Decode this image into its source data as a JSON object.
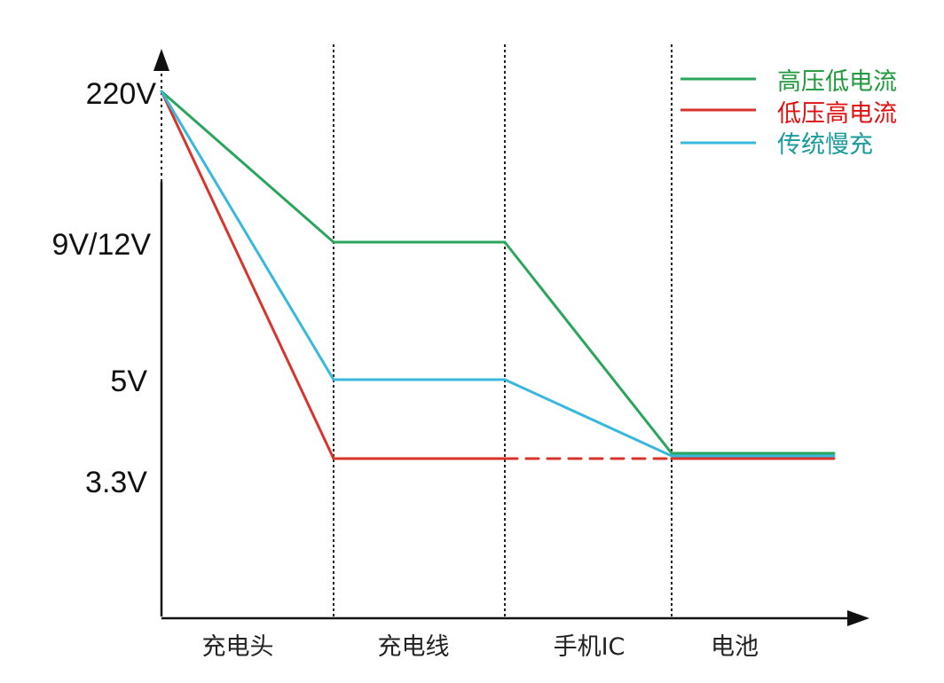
{
  "chart_data": {
    "type": "line",
    "title": "",
    "xlabel": "",
    "ylabel": "",
    "categories": [
      "充电头",
      "充电线",
      "手机IC",
      "电池"
    ],
    "y_ticks": [
      "220V",
      "9V/12V",
      "5V",
      "3.3V"
    ],
    "legend_position": "top-right",
    "grid": "vertical dotted separators between stages",
    "series": [
      {
        "name": "高压低电流",
        "color": "#2aa55c",
        "points": [
          {
            "x": "起点",
            "y": "220V"
          },
          {
            "x": "充电线-起",
            "y": "9V/12V"
          },
          {
            "x": "充电线-止",
            "y": "9V/12V"
          },
          {
            "x": "电池-起",
            "y": "3.3V"
          },
          {
            "x": "电池-止",
            "y": "3.3V"
          }
        ]
      },
      {
        "name": "低压高电流",
        "color": "#d9342b",
        "dashed_from_index": 2,
        "points": [
          {
            "x": "起点",
            "y": "220V"
          },
          {
            "x": "充电线-起",
            "y": "3.3V"
          },
          {
            "x": "充电线-止",
            "y": "3.3V"
          },
          {
            "x": "电池-起",
            "y": "3.3V"
          },
          {
            "x": "电池-止",
            "y": "3.3V"
          }
        ]
      },
      {
        "name": "传统慢充",
        "color": "#38b8dd",
        "points": [
          {
            "x": "起点",
            "y": "220V"
          },
          {
            "x": "充电线-起",
            "y": "5V"
          },
          {
            "x": "充电线-止",
            "y": "5V"
          },
          {
            "x": "电池-起",
            "y": "3.3V"
          },
          {
            "x": "电池-止",
            "y": "3.3V"
          }
        ]
      }
    ]
  },
  "legend": {
    "items": [
      {
        "label": "高压低电流",
        "color": "#2aa55c",
        "text_color": "#1f9a3c"
      },
      {
        "label": "低压高电流",
        "color": "#d9342b",
        "text_color": "#e01010"
      },
      {
        "label": "传统慢充",
        "color": "#38b8dd",
        "text_color": "#1a9a9a"
      }
    ]
  }
}
